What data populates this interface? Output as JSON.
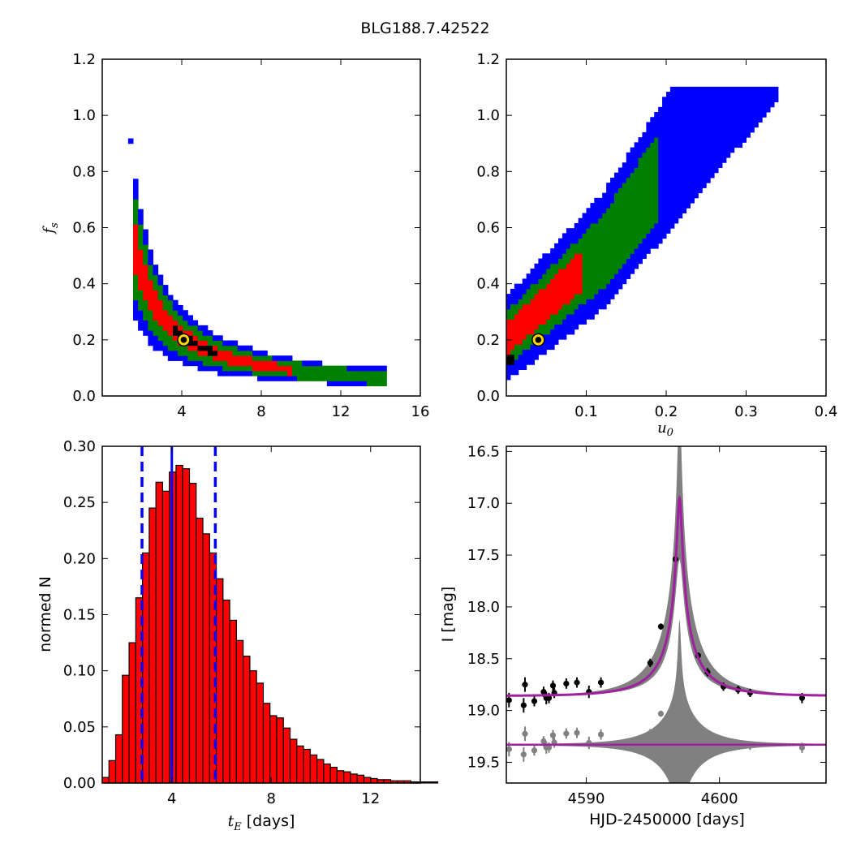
{
  "figure_title": "BLG188.7.42522",
  "colors": {
    "blue": "#0000ff",
    "green": "#008000",
    "red": "#ff0000",
    "black": "#000000",
    "marker_fill": "#ffd700",
    "model": "#a020a0",
    "residual": "#808080"
  },
  "chart_data": [
    {
      "id": "fs-vs-tE",
      "type": "heatmap",
      "description_levels": [
        "blue",
        "green",
        "red",
        "black"
      ],
      "xlim": [
        0,
        16
      ],
      "ylim": [
        0.0,
        1.2
      ],
      "xticks": [
        "4",
        "8",
        "12",
        "16"
      ],
      "yticks": [
        "0.0",
        "0.2",
        "0.4",
        "0.6",
        "0.8",
        "1.0",
        "1.2"
      ],
      "ylabel": "f",
      "ylabel_sub": "s",
      "best_fit": {
        "x": 4.1,
        "y": 0.2
      }
    },
    {
      "id": "fs-vs-u0",
      "type": "heatmap",
      "xlim": [
        0.0,
        0.4
      ],
      "ylim": [
        0.0,
        1.2
      ],
      "xticks": [
        "0.1",
        "0.2",
        "0.3",
        "0.4"
      ],
      "yticks": [
        "0.0",
        "0.2",
        "0.4",
        "0.6",
        "0.8",
        "1.0",
        "1.2"
      ],
      "xlabel": "u",
      "xlabel_sub": "0",
      "best_fit": {
        "x": 0.04,
        "y": 0.2
      }
    },
    {
      "id": "tE-histogram",
      "type": "bar",
      "xlim": [
        1.2,
        14
      ],
      "ylim": [
        0.0,
        0.3
      ],
      "xticks": [
        "4",
        "8",
        "12"
      ],
      "yticks": [
        "0.00",
        "0.05",
        "0.10",
        "0.15",
        "0.20",
        "0.25",
        "0.30"
      ],
      "xlabel": "t",
      "xlabel_sub": "E",
      "xlabel_rest": " [days]",
      "ylabel": "normed N",
      "bin_start": 1.2,
      "bin_width": 0.27,
      "values": [
        0.005,
        0.02,
        0.043,
        0.096,
        0.125,
        0.165,
        0.205,
        0.245,
        0.268,
        0.26,
        0.277,
        0.283,
        0.28,
        0.267,
        0.236,
        0.222,
        0.205,
        0.182,
        0.163,
        0.145,
        0.127,
        0.113,
        0.1,
        0.089,
        0.071,
        0.06,
        0.058,
        0.049,
        0.039,
        0.033,
        0.03,
        0.025,
        0.021,
        0.017,
        0.014,
        0.011,
        0.01,
        0.008,
        0.007,
        0.005,
        0.004,
        0.003,
        0.003,
        0.002,
        0.002,
        0.002,
        0.001,
        0.001,
        0.001,
        0.001
      ],
      "median": 4.0,
      "lower": 2.8,
      "upper": 5.75
    },
    {
      "id": "lightcurve",
      "type": "scatter",
      "xlim": [
        4584,
        4608
      ],
      "ylim": [
        19.7,
        16.45
      ],
      "xticks": [
        "4590",
        "4600"
      ],
      "yticks": [
        "16.5",
        "17.0",
        "17.5",
        "18.0",
        "18.5",
        "19.0",
        "19.5"
      ],
      "xlabel": "HJD-2450000 [days]",
      "ylabel": "I [mag]",
      "model": {
        "t0": 4597.0,
        "u0": 0.04,
        "tE": 4.1,
        "fs": 0.2,
        "base": 18.86
      },
      "residual_offset": 19.33,
      "points": [
        {
          "x": 4584.2,
          "y": 18.9,
          "e": 0.07
        },
        {
          "x": 4585.3,
          "y": 18.95,
          "e": 0.07
        },
        {
          "x": 4585.4,
          "y": 18.75,
          "e": 0.07
        },
        {
          "x": 4586.1,
          "y": 18.91,
          "e": 0.05
        },
        {
          "x": 4586.8,
          "y": 18.82,
          "e": 0.05
        },
        {
          "x": 4587.0,
          "y": 18.88,
          "e": 0.06
        },
        {
          "x": 4587.2,
          "y": 18.88,
          "e": 0.05
        },
        {
          "x": 4587.5,
          "y": 18.76,
          "e": 0.05
        },
        {
          "x": 4587.6,
          "y": 18.83,
          "e": 0.05
        },
        {
          "x": 4588.5,
          "y": 18.74,
          "e": 0.05
        },
        {
          "x": 4589.3,
          "y": 18.73,
          "e": 0.05
        },
        {
          "x": 4590.2,
          "y": 18.82,
          "e": 0.06
        },
        {
          "x": 4591.1,
          "y": 18.73,
          "e": 0.05
        },
        {
          "x": 4594.8,
          "y": 18.54,
          "e": 0.04
        },
        {
          "x": 4595.6,
          "y": 18.19,
          "e": 0.03
        },
        {
          "x": 4596.7,
          "y": 17.54,
          "e": 0.03
        },
        {
          "x": 4598.4,
          "y": 18.47,
          "e": 0.03
        },
        {
          "x": 4599.1,
          "y": 18.63,
          "e": 0.04
        },
        {
          "x": 4600.3,
          "y": 18.77,
          "e": 0.04
        },
        {
          "x": 4601.4,
          "y": 18.8,
          "e": 0.04
        },
        {
          "x": 4602.3,
          "y": 18.83,
          "e": 0.04
        },
        {
          "x": 4606.2,
          "y": 18.88,
          "e": 0.05
        }
      ]
    }
  ]
}
